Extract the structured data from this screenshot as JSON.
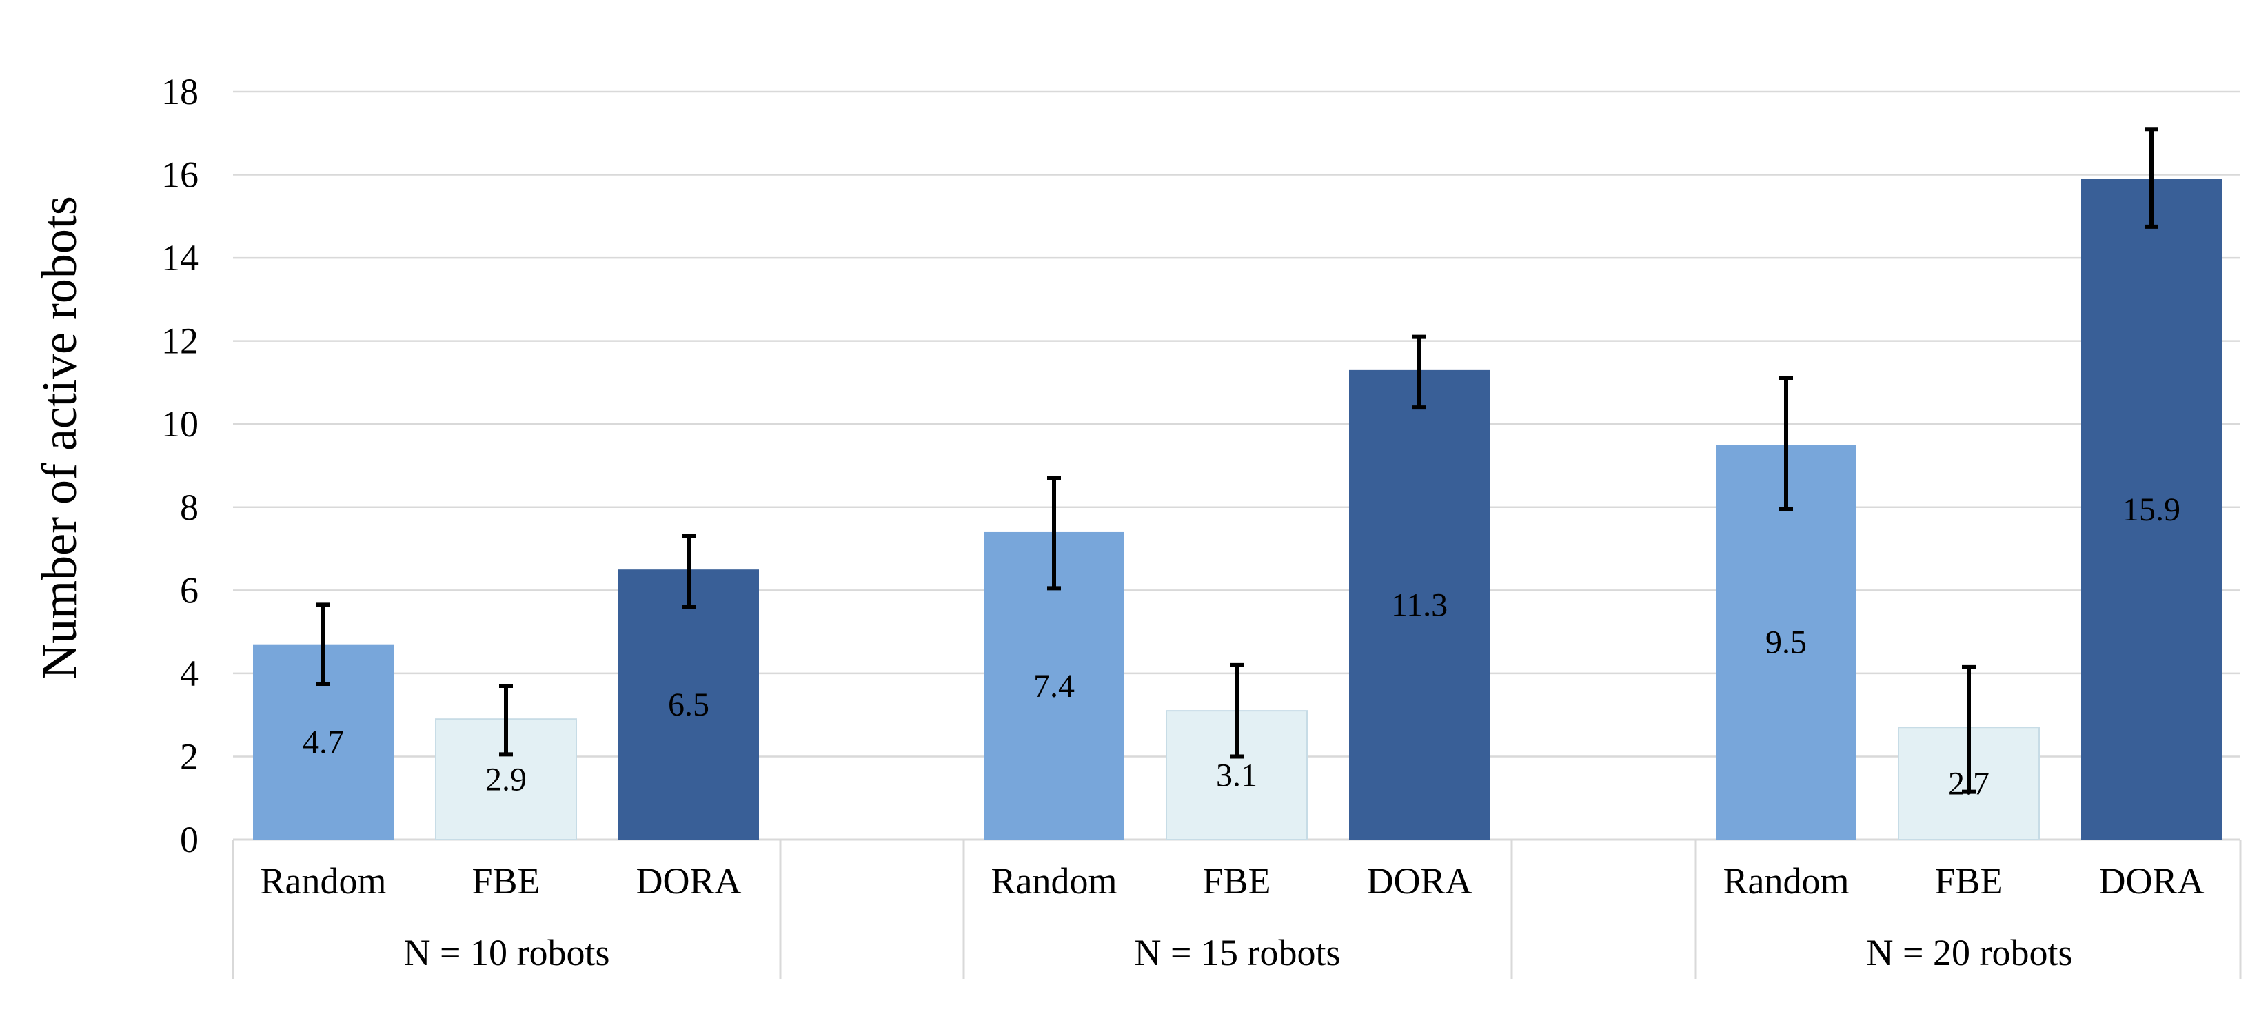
{
  "chart_data": {
    "type": "bar",
    "ylabel": "Number of active robots",
    "ylim": [
      0,
      18
    ],
    "yticks": [
      0,
      2,
      4,
      6,
      8,
      10,
      12,
      14,
      16,
      18
    ],
    "grid": true,
    "legend": "none",
    "groups": [
      {
        "label": "N = 10 robots",
        "bars": [
          {
            "category": "Random",
            "value": 4.7,
            "error_low": 3.75,
            "error_high": 5.65
          },
          {
            "category": "FBE",
            "value": 2.9,
            "error_low": 2.05,
            "error_high": 3.7
          },
          {
            "category": "DORA",
            "value": 6.5,
            "error_low": 5.6,
            "error_high": 7.3
          }
        ]
      },
      {
        "label": "N = 15 robots",
        "bars": [
          {
            "category": "Random",
            "value": 7.4,
            "error_low": 6.05,
            "error_high": 8.7
          },
          {
            "category": "FBE",
            "value": 3.1,
            "error_low": 2.0,
            "error_high": 4.2
          },
          {
            "category": "DORA",
            "value": 11.3,
            "error_low": 10.4,
            "error_high": 12.1
          }
        ]
      },
      {
        "label": "N = 20 robots",
        "bars": [
          {
            "category": "Random",
            "value": 9.5,
            "error_low": 7.95,
            "error_high": 11.1
          },
          {
            "category": "FBE",
            "value": 2.7,
            "error_low": 1.15,
            "error_high": 4.15
          },
          {
            "category": "DORA",
            "value": 15.9,
            "error_low": 14.75,
            "error_high": 17.1
          }
        ]
      }
    ],
    "colors": {
      "Random": "#78a6da",
      "FBE": "#e3f0f4",
      "DORA": "#395f97",
      "grid": "#d9d9d9",
      "error_bar": "#000000"
    }
  }
}
